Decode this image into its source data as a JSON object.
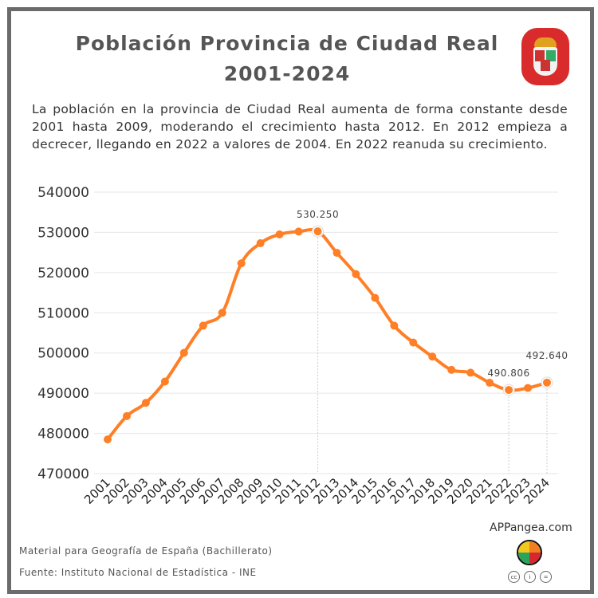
{
  "title_line1": "Población Provincia de Ciudad Real",
  "title_line2": "2001-2024",
  "description": "La población en la provincia de Ciudad Real aumenta de forma constante desde 2001 hasta 2009, moderando el crecimiento hasta 2012. En 2012 empieza a decrecer, llegando en 2022 a valores de 2004. En 2022 reanuda su crecimiento.",
  "footer": {
    "material": "Material para Geografía de España (Bachillerato)",
    "source": "Fuente: Instituto Nacional de Estadística - INE",
    "brand": "APPangea.com",
    "license_icons": [
      "cc-icon",
      "by-icon",
      "nd-icon"
    ]
  },
  "logo": "ciudad-real-coat-of-arms-icon",
  "chart_data": {
    "type": "line",
    "title": "Población Provincia de Ciudad Real 2001-2024",
    "xlabel": "",
    "ylabel": "",
    "color": "#ff7f27",
    "grid": true,
    "ylim": [
      470000,
      540000
    ],
    "yticks": [
      "470000",
      "480000",
      "490000",
      "500000",
      "510000",
      "520000",
      "530000",
      "540000"
    ],
    "categories": [
      "2001",
      "2002",
      "2003",
      "2004",
      "2005",
      "2006",
      "2007",
      "2008",
      "2009",
      "2010",
      "2011",
      "2012",
      "2013",
      "2014",
      "2015",
      "2016",
      "2017",
      "2018",
      "2019",
      "2020",
      "2021",
      "2022",
      "2023",
      "2024"
    ],
    "values": [
      478500,
      484300,
      487600,
      492900,
      500050,
      506800,
      510000,
      522300,
      527300,
      529500,
      530200,
      530250,
      524900,
      519600,
      513700,
      506800,
      502600,
      499100,
      495800,
      495100,
      492600,
      490806,
      491300,
      492640
    ],
    "annotations": [
      {
        "year": "2012",
        "label": "530.250"
      },
      {
        "year": "2022",
        "label": "490.806"
      },
      {
        "year": "2024",
        "label": "492.640"
      }
    ]
  }
}
